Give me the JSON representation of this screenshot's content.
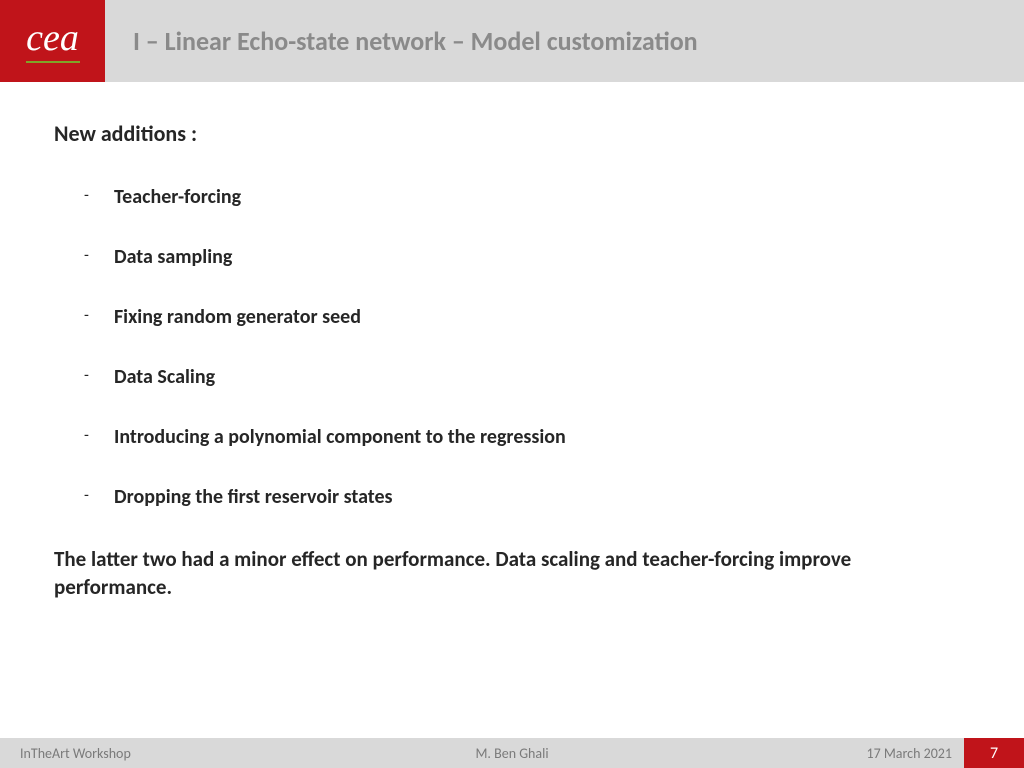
{
  "header": {
    "logo_text": "cea",
    "title": "I – Linear Echo-state network – Model customization"
  },
  "content": {
    "intro": "New additions :",
    "items": [
      "Teacher-forcing",
      "Data sampling",
      "Fixing random generator seed",
      "Data Scaling",
      "Introducing a polynomial component to the regression",
      "Dropping the first reservoir states"
    ],
    "summary": "The latter two had a minor effect on performance. Data scaling and teacher-forcing improve performance."
  },
  "footer": {
    "left": "InTheArt Workshop",
    "center": "M. Ben Ghali",
    "date": "17 March 2021",
    "page": "7"
  },
  "colors": {
    "accent_red": "#c0141a",
    "header_gray": "#d9d9d9",
    "title_gray": "#8a8a8a",
    "logo_green": "#7fa428",
    "text_dark": "#262626",
    "footer_text": "#7a7a7a"
  }
}
